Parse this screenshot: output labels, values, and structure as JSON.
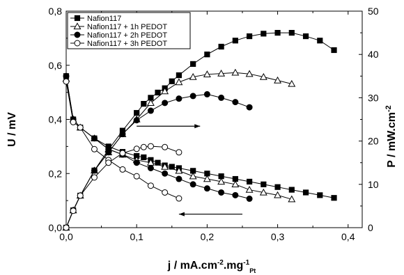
{
  "chart_data": {
    "type": "line",
    "xlim": [
      0,
      0.42
    ],
    "ylim_left": [
      0,
      0.8
    ],
    "ylim_right": [
      0,
      50
    ],
    "x_ticks": [
      "0,0",
      "0,1",
      "0,2",
      "0,3",
      "0,4"
    ],
    "y_left_ticks": [
      "0,0",
      "0,2",
      "0,4",
      "0,6",
      "0,8"
    ],
    "y_right_ticks": [
      "0",
      "10",
      "20",
      "30",
      "40",
      "50"
    ],
    "xlabel": {
      "main": "j / mA.cm",
      "sup1": "-2",
      "mid": ".mg",
      "sup2": "-1",
      "sub": "Pt"
    },
    "ylabel_left": "U / mV",
    "ylabel_right": {
      "main": "P / mW.cm",
      "sup": "-2"
    },
    "legend_position": "top-left",
    "grid": false,
    "series": [
      {
        "name": "Nafion117",
        "marker": "square-filled",
        "voltage": [
          [
            0.0,
            0.56
          ],
          [
            0.01,
            0.4
          ],
          [
            0.02,
            0.37
          ],
          [
            0.04,
            0.33
          ],
          [
            0.06,
            0.3
          ],
          [
            0.08,
            0.28
          ],
          [
            0.1,
            0.265
          ],
          [
            0.11,
            0.26
          ],
          [
            0.12,
            0.25
          ],
          [
            0.13,
            0.24
          ],
          [
            0.14,
            0.23
          ],
          [
            0.15,
            0.225
          ],
          [
            0.16,
            0.22
          ],
          [
            0.18,
            0.21
          ],
          [
            0.2,
            0.2
          ],
          [
            0.22,
            0.19
          ],
          [
            0.24,
            0.18
          ],
          [
            0.26,
            0.17
          ],
          [
            0.28,
            0.16
          ],
          [
            0.3,
            0.15
          ],
          [
            0.32,
            0.14
          ],
          [
            0.34,
            0.13
          ],
          [
            0.36,
            0.12
          ],
          [
            0.38,
            0.11
          ]
        ],
        "power": [
          [
            0.0,
            0
          ],
          [
            0.01,
            4
          ],
          [
            0.02,
            7.4
          ],
          [
            0.04,
            13.2
          ],
          [
            0.06,
            18
          ],
          [
            0.08,
            22.4
          ],
          [
            0.1,
            26.5
          ],
          [
            0.11,
            28.6
          ],
          [
            0.12,
            30
          ],
          [
            0.13,
            31.2
          ],
          [
            0.14,
            32.2
          ],
          [
            0.15,
            33.8
          ],
          [
            0.16,
            35.2
          ],
          [
            0.18,
            37.8
          ],
          [
            0.2,
            40
          ],
          [
            0.22,
            41.8
          ],
          [
            0.24,
            43.2
          ],
          [
            0.26,
            44.2
          ],
          [
            0.28,
            44.8
          ],
          [
            0.3,
            45
          ],
          [
            0.32,
            45
          ],
          [
            0.34,
            44.2
          ],
          [
            0.36,
            43.2
          ],
          [
            0.38,
            41
          ]
        ]
      },
      {
        "name": "Nafion117 + 1h PEDOT",
        "marker": "triangle-open",
        "voltage": [
          [
            0.0,
            0.55
          ],
          [
            0.01,
            0.4
          ],
          [
            0.02,
            0.37
          ],
          [
            0.04,
            0.33
          ],
          [
            0.06,
            0.29
          ],
          [
            0.08,
            0.27
          ],
          [
            0.1,
            0.25
          ],
          [
            0.12,
            0.24
          ],
          [
            0.14,
            0.225
          ],
          [
            0.16,
            0.21
          ],
          [
            0.18,
            0.19
          ],
          [
            0.2,
            0.18
          ],
          [
            0.22,
            0.17
          ],
          [
            0.24,
            0.16
          ],
          [
            0.26,
            0.14
          ],
          [
            0.28,
            0.13
          ],
          [
            0.3,
            0.12
          ],
          [
            0.32,
            0.105
          ]
        ],
        "power": [
          [
            0.0,
            0
          ],
          [
            0.01,
            4
          ],
          [
            0.02,
            7.4
          ],
          [
            0.04,
            13.2
          ],
          [
            0.06,
            17.4
          ],
          [
            0.08,
            21.6
          ],
          [
            0.1,
            25
          ],
          [
            0.12,
            28.8
          ],
          [
            0.14,
            31.5
          ],
          [
            0.16,
            33.6
          ],
          [
            0.18,
            34.8
          ],
          [
            0.2,
            35.4
          ],
          [
            0.22,
            35.6
          ],
          [
            0.24,
            35.8
          ],
          [
            0.26,
            35.5
          ],
          [
            0.28,
            34.8
          ],
          [
            0.3,
            34
          ],
          [
            0.32,
            33.2
          ]
        ]
      },
      {
        "name": "Nafion117 + 2h PEDOT",
        "marker": "circle-filled",
        "voltage": [
          [
            0.0,
            0.56
          ],
          [
            0.01,
            0.4
          ],
          [
            0.02,
            0.37
          ],
          [
            0.04,
            0.33
          ],
          [
            0.06,
            0.29
          ],
          [
            0.08,
            0.27
          ],
          [
            0.1,
            0.24
          ],
          [
            0.12,
            0.22
          ],
          [
            0.14,
            0.2
          ],
          [
            0.16,
            0.18
          ],
          [
            0.18,
            0.16
          ],
          [
            0.2,
            0.145
          ],
          [
            0.22,
            0.13
          ],
          [
            0.24,
            0.12
          ],
          [
            0.26,
            0.107
          ]
        ],
        "power": [
          [
            0.0,
            0
          ],
          [
            0.01,
            4
          ],
          [
            0.02,
            7.4
          ],
          [
            0.04,
            13.2
          ],
          [
            0.06,
            17.4
          ],
          [
            0.08,
            21.6
          ],
          [
            0.1,
            24.8
          ],
          [
            0.12,
            27
          ],
          [
            0.14,
            28.8
          ],
          [
            0.16,
            29.8
          ],
          [
            0.18,
            30.4
          ],
          [
            0.2,
            30.8
          ],
          [
            0.22,
            30
          ],
          [
            0.24,
            29
          ],
          [
            0.26,
            27.8
          ]
        ]
      },
      {
        "name": "Nafion117 + 3h PEDOT",
        "marker": "circle-open",
        "voltage": [
          [
            0.0,
            0.54
          ],
          [
            0.01,
            0.39
          ],
          [
            0.02,
            0.37
          ],
          [
            0.04,
            0.29
          ],
          [
            0.06,
            0.25
          ],
          [
            0.08,
            0.215
          ],
          [
            0.1,
            0.19
          ],
          [
            0.12,
            0.155
          ],
          [
            0.14,
            0.13
          ],
          [
            0.16,
            0.108
          ]
        ],
        "power": [
          [
            0.0,
            0
          ],
          [
            0.01,
            3.9
          ],
          [
            0.02,
            7.4
          ],
          [
            0.04,
            11.6
          ],
          [
            0.06,
            15
          ],
          [
            0.08,
            17.2
          ],
          [
            0.1,
            18.2
          ],
          [
            0.11,
            18.6
          ],
          [
            0.12,
            18.8
          ],
          [
            0.14,
            18.6
          ],
          [
            0.16,
            17.4
          ]
        ]
      }
    ]
  }
}
